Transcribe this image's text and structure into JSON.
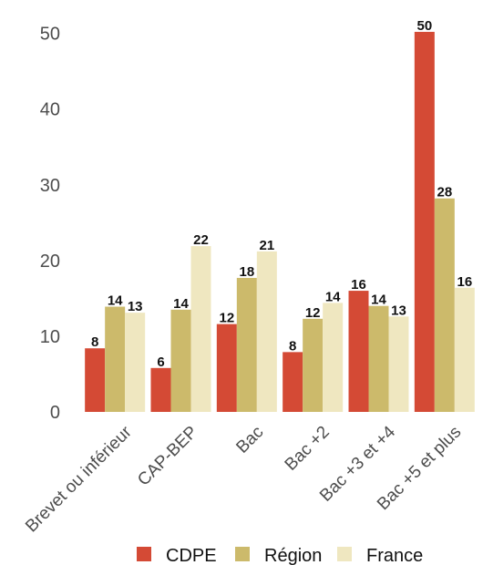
{
  "chart_data": {
    "type": "bar",
    "title": "",
    "xlabel": "",
    "ylabel": "",
    "ylim": [
      0,
      52
    ],
    "yticks": [
      0,
      10,
      20,
      30,
      40,
      50
    ],
    "grid": false,
    "legend_position": "bottom",
    "categories": [
      "Brevet ou inférieur",
      "CAP-BEP",
      "Bac",
      "Bac +2",
      "Bac +3 et +4",
      "Bac +5 et plus"
    ],
    "series": [
      {
        "name": "CDPE",
        "color": "#d44a35",
        "values": [
          8.4,
          5.8,
          11.6,
          7.9,
          16,
          50.2
        ],
        "labels": [
          "8",
          "6",
          "12",
          "8",
          "16",
          "50"
        ]
      },
      {
        "name": "Région",
        "color": "#ccba6b",
        "values": [
          13.9,
          13.5,
          17.7,
          12.3,
          14,
          28.2
        ],
        "labels": [
          "14",
          "14",
          "18",
          "12",
          "14",
          "28"
        ]
      },
      {
        "name": "France",
        "color": "#efe7c0",
        "values": [
          13.1,
          21.9,
          21.2,
          14.4,
          12.6,
          16.4
        ],
        "labels": [
          "13",
          "22",
          "21",
          "14",
          "13",
          "16"
        ]
      }
    ]
  }
}
